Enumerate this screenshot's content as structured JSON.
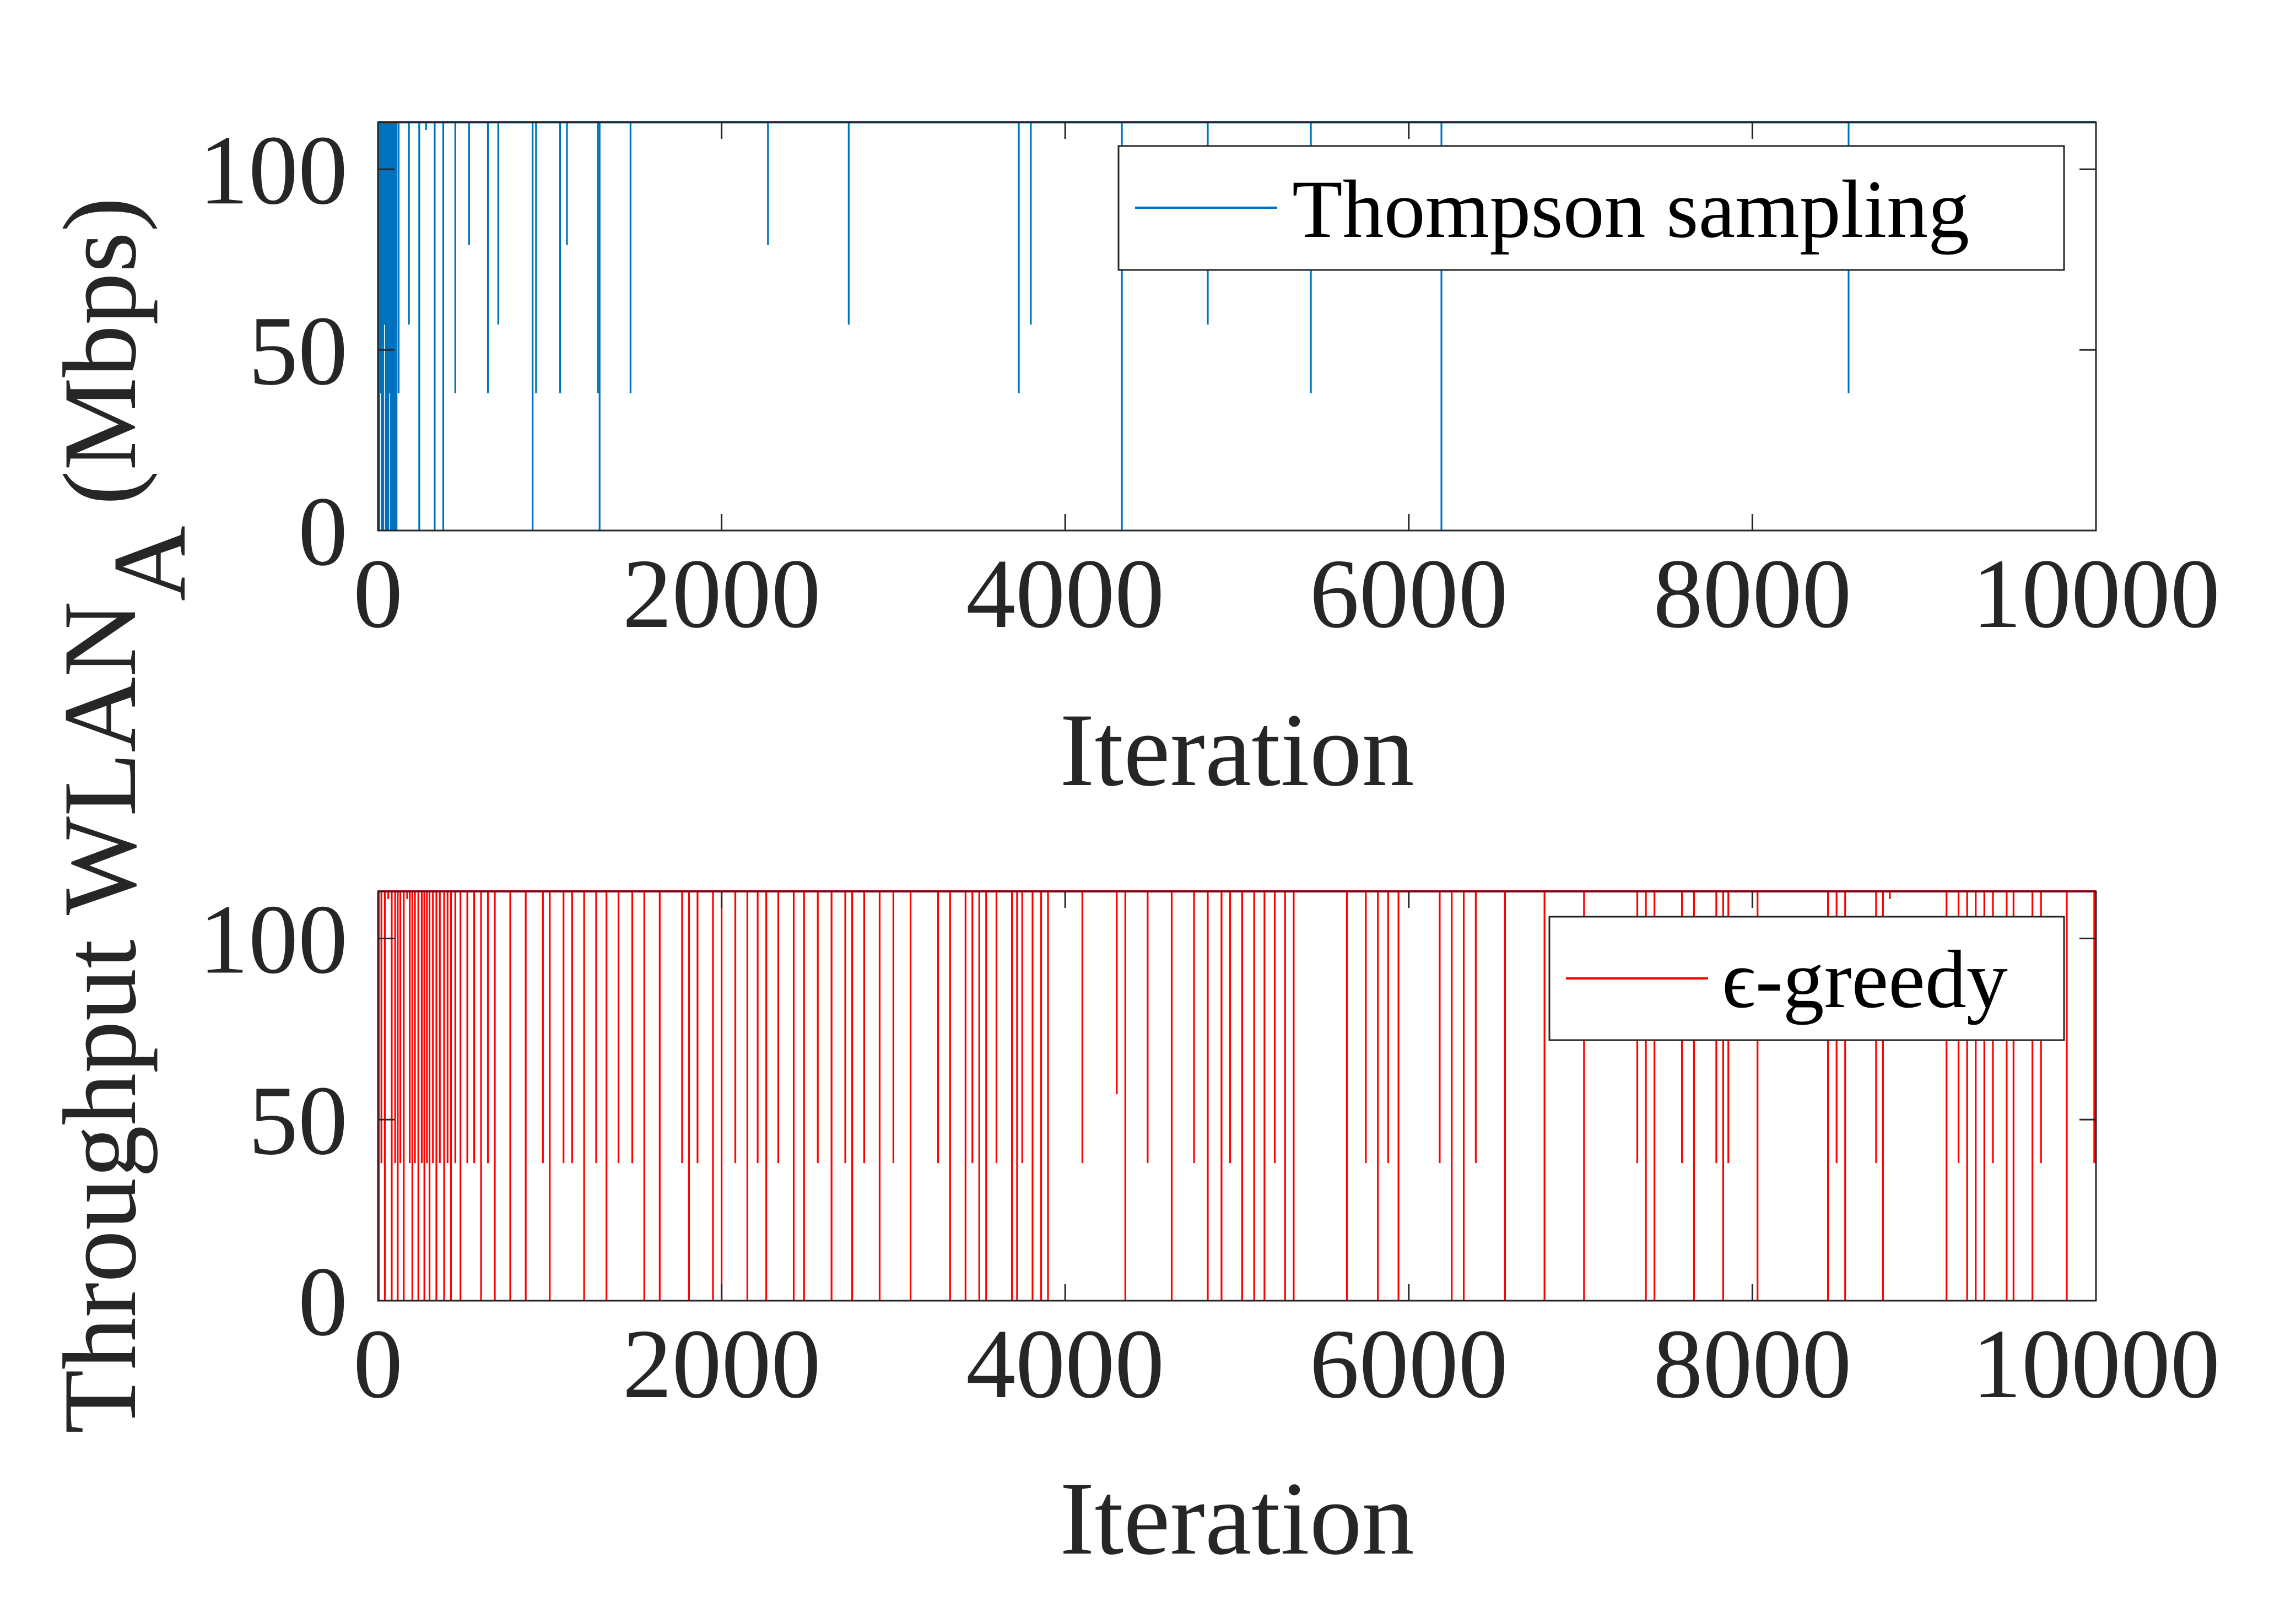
{
  "ylabel": {
    "prefix": "Throughput WLAN",
    "subscript": "A",
    "suffix": " (Mbps)"
  },
  "chart_data": [
    {
      "type": "line",
      "series": [
        {
          "name": "Thompson sampling",
          "color": "#0072BD",
          "baseline": 113,
          "dips": [
            [
              0,
              0
            ],
            [
              8,
              0
            ],
            [
              15,
              38
            ],
            [
              22,
              0
            ],
            [
              30,
              0
            ],
            [
              38,
              57
            ],
            [
              45,
              0
            ],
            [
              52,
              0
            ],
            [
              60,
              0
            ],
            [
              68,
              38
            ],
            [
              75,
              0
            ],
            [
              82,
              0
            ],
            [
              90,
              0
            ],
            [
              98,
              0
            ],
            [
              108,
              0
            ],
            [
              120,
              38
            ],
            [
              180,
              57
            ],
            [
              240,
              0
            ],
            [
              280,
              113
            ],
            [
              330,
              0
            ],
            [
              380,
              0
            ],
            [
              450,
              38
            ],
            [
              530,
              79
            ],
            [
              640,
              38
            ],
            [
              700,
              57
            ],
            [
              900,
              0
            ],
            [
              920,
              38
            ],
            [
              1060,
              38
            ],
            [
              1100,
              79
            ],
            [
              1280,
              38
            ],
            [
              1290,
              0
            ],
            [
              1470,
              38
            ],
            [
              2270,
              79
            ],
            [
              2740,
              57
            ],
            [
              3730,
              38
            ],
            [
              3800,
              57
            ],
            [
              4330,
              0
            ],
            [
              4830,
              57
            ],
            [
              5430,
              38
            ],
            [
              6190,
              0
            ],
            [
              8560,
              38
            ]
          ]
        }
      ],
      "xlim": [
        0,
        10000
      ],
      "ylim": [
        0,
        113
      ],
      "xticks": [
        0,
        2000,
        4000,
        6000,
        8000,
        10000
      ],
      "yticks": [
        0,
        50,
        100
      ],
      "xlabel": "Iteration",
      "legend_position": "top-right"
    },
    {
      "type": "line",
      "series": [
        {
          "name": "ϵ-greedy",
          "color": "#FF0000",
          "baseline": 113,
          "dips": [
            [
              5,
              0
            ],
            [
              20,
              38
            ],
            [
              40,
              0
            ],
            [
              60,
              113
            ],
            [
              80,
              0
            ],
            [
              100,
              38
            ],
            [
              115,
              0
            ],
            [
              130,
              38
            ],
            [
              150,
              0
            ],
            [
              170,
              113
            ],
            [
              185,
              38
            ],
            [
              200,
              0
            ],
            [
              215,
              38
            ],
            [
              235,
              0
            ],
            [
              255,
              38
            ],
            [
              270,
              0
            ],
            [
              285,
              38
            ],
            [
              300,
              0
            ],
            [
              320,
              38
            ],
            [
              340,
              0
            ],
            [
              360,
              38
            ],
            [
              385,
              0
            ],
            [
              405,
              38
            ],
            [
              425,
              0
            ],
            [
              450,
              38
            ],
            [
              480,
              0
            ],
            [
              520,
              38
            ],
            [
              560,
              38
            ],
            [
              600,
              0
            ],
            [
              640,
              38
            ],
            [
              680,
              0
            ],
            [
              770,
              0
            ],
            [
              860,
              0
            ],
            [
              960,
              38
            ],
            [
              1000,
              0
            ],
            [
              1080,
              38
            ],
            [
              1130,
              38
            ],
            [
              1200,
              0
            ],
            [
              1270,
              38
            ],
            [
              1330,
              0
            ],
            [
              1400,
              38
            ],
            [
              1480,
              38
            ],
            [
              1550,
              0
            ],
            [
              1640,
              0
            ],
            [
              1770,
              38
            ],
            [
              1810,
              0
            ],
            [
              1860,
              38
            ],
            [
              1950,
              0
            ],
            [
              2000,
              0
            ],
            [
              2080,
              38
            ],
            [
              2150,
              0
            ],
            [
              2210,
              38
            ],
            [
              2260,
              0
            ],
            [
              2330,
              38
            ],
            [
              2420,
              0
            ],
            [
              2480,
              0
            ],
            [
              2560,
              38
            ],
            [
              2640,
              0
            ],
            [
              2720,
              38
            ],
            [
              2760,
              0
            ],
            [
              2830,
              38
            ],
            [
              2920,
              0
            ],
            [
              3000,
              38
            ],
            [
              3100,
              0
            ],
            [
              3260,
              38
            ],
            [
              3330,
              0
            ],
            [
              3420,
              0
            ],
            [
              3460,
              38
            ],
            [
              3500,
              0
            ],
            [
              3540,
              0
            ],
            [
              3600,
              38
            ],
            [
              3690,
              0
            ],
            [
              3720,
              0
            ],
            [
              3750,
              38
            ],
            [
              3810,
              0
            ],
            [
              3860,
              0
            ],
            [
              3900,
              0
            ],
            [
              4100,
              38
            ],
            [
              4300,
              57
            ],
            [
              4350,
              0
            ],
            [
              4480,
              38
            ],
            [
              4620,
              0
            ],
            [
              4750,
              38
            ],
            [
              4830,
              0
            ],
            [
              4910,
              0
            ],
            [
              4960,
              38
            ],
            [
              5030,
              0
            ],
            [
              5100,
              0
            ],
            [
              5160,
              0
            ],
            [
              5220,
              38
            ],
            [
              5280,
              0
            ],
            [
              5330,
              0
            ],
            [
              5640,
              0
            ],
            [
              5750,
              38
            ],
            [
              5820,
              0
            ],
            [
              5880,
              38
            ],
            [
              5940,
              0
            ],
            [
              6180,
              38
            ],
            [
              6250,
              0
            ],
            [
              6320,
              0
            ],
            [
              6390,
              38
            ],
            [
              6560,
              0
            ],
            [
              6790,
              0
            ],
            [
              7020,
              0
            ],
            [
              7330,
              38
            ],
            [
              7380,
              0
            ],
            [
              7430,
              0
            ],
            [
              7590,
              38
            ],
            [
              7660,
              0
            ],
            [
              7790,
              38
            ],
            [
              7830,
              0
            ],
            [
              7860,
              38
            ],
            [
              8030,
              0
            ],
            [
              8440,
              0
            ],
            [
              8490,
              38
            ],
            [
              8540,
              0
            ],
            [
              8720,
              38
            ],
            [
              8760,
              0
            ],
            [
              8800,
              113
            ],
            [
              9130,
              0
            ],
            [
              9200,
              38
            ],
            [
              9250,
              0
            ],
            [
              9300,
              0
            ],
            [
              9350,
              0
            ],
            [
              9400,
              38
            ],
            [
              9480,
              0
            ],
            [
              9520,
              0
            ],
            [
              9630,
              0
            ],
            [
              9680,
              38
            ],
            [
              9830,
              0
            ],
            [
              9990,
              38
            ]
          ]
        }
      ],
      "xlim": [
        0,
        10000
      ],
      "ylim": [
        0,
        113
      ],
      "xticks": [
        0,
        2000,
        4000,
        6000,
        8000,
        10000
      ],
      "yticks": [
        0,
        50,
        100
      ],
      "xlabel": "Iteration",
      "legend_position": "top-right"
    }
  ]
}
